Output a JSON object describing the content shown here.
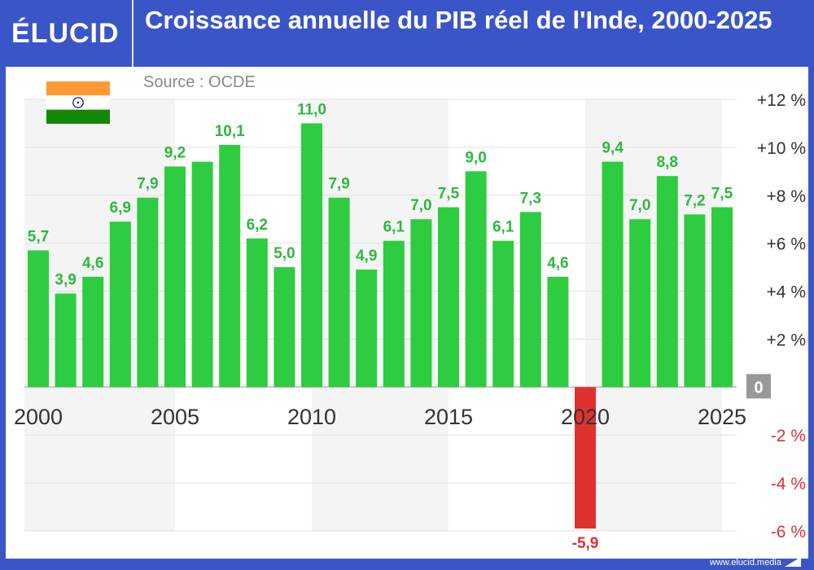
{
  "header": {
    "logo": "ÉLUCID",
    "title": "Croissance annuelle du PIB réel de l'Inde, 2000-2025"
  },
  "source": "Source : OCDE",
  "footer": {
    "website": "www.elucid.media"
  },
  "flag": {
    "icon": "india-flag-icon",
    "colors": [
      "#ff9933",
      "#ffffff",
      "#138808"
    ],
    "chakra_color": "#000080"
  },
  "colors": {
    "brand": "#3a55c8",
    "positive": "#2ecc40",
    "negative": "#e03131",
    "positive_label": "#2eb83f",
    "negative_label": "#e03131",
    "zero_badge": "#999999"
  },
  "chart_data": {
    "type": "bar",
    "title": "Croissance annuelle du PIB réel de l'Inde, 2000-2025",
    "years": [
      2000,
      2001,
      2002,
      2003,
      2004,
      2005,
      2006,
      2007,
      2008,
      2009,
      2010,
      2011,
      2012,
      2013,
      2014,
      2015,
      2016,
      2017,
      2018,
      2019,
      2020,
      2021,
      2022,
      2023,
      2024,
      2025
    ],
    "values": [
      5.7,
      3.9,
      4.6,
      6.9,
      7.9,
      9.2,
      9.4,
      10.1,
      6.2,
      5.0,
      11.0,
      7.9,
      4.9,
      6.1,
      7.0,
      7.5,
      9.0,
      6.1,
      7.3,
      4.6,
      -5.9,
      9.4,
      7.0,
      8.8,
      7.2,
      7.5
    ],
    "labels": [
      "5,7",
      "3,9",
      "4,6",
      "6,9",
      "7,9",
      "9,2",
      "",
      "10,1",
      "6,2",
      "5,0",
      "11,0",
      "7,9",
      "4,9",
      "6,1",
      "7,0",
      "7,5",
      "9,0",
      "6,1",
      "7,3",
      "4,6",
      "-5,9",
      "9,4",
      "7,0",
      "8,8",
      "7,2",
      "7,5"
    ],
    "x_ticks": [
      "2000",
      "2005",
      "2010",
      "2015",
      "2020",
      "2025"
    ],
    "y_ticks": [
      {
        "value": 12,
        "label": "+12 %"
      },
      {
        "value": 10,
        "label": "+10 %"
      },
      {
        "value": 8,
        "label": "+8 %"
      },
      {
        "value": 6,
        "label": "+6 %"
      },
      {
        "value": 4,
        "label": "+4 %"
      },
      {
        "value": 2,
        "label": "+2 %"
      },
      {
        "value": 0,
        "label": "0"
      },
      {
        "value": -2,
        "label": "-2 %"
      },
      {
        "value": -4,
        "label": "-4 %"
      },
      {
        "value": -6,
        "label": "-6 %"
      }
    ],
    "ylim": [
      -6,
      12
    ],
    "grid": true,
    "xlabel": "",
    "ylabel": ""
  }
}
